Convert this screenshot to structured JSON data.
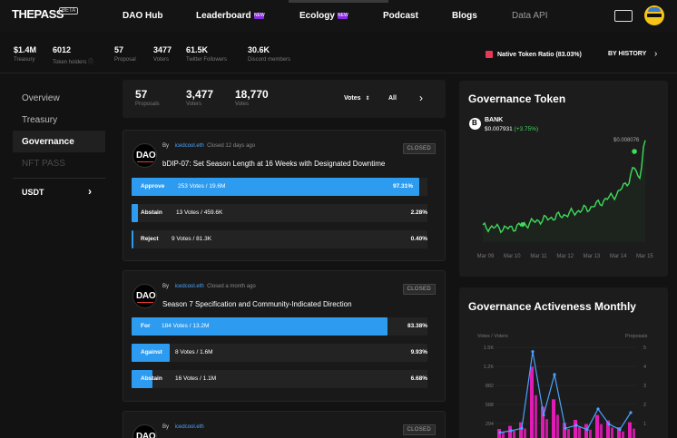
{
  "nav": {
    "logo": "THEPASS",
    "beta": "BETA",
    "links": [
      "DAO Hub",
      "Leaderboard",
      "Ecology",
      "Podcast",
      "Blogs",
      "Data API"
    ],
    "new_tag": "NEW"
  },
  "stats": [
    {
      "value": "$1.4M",
      "label": "Treasury"
    },
    {
      "value": "6012",
      "label": "Token holders ⓘ"
    },
    {
      "value": "57",
      "label": "Proposal"
    },
    {
      "value": "3477",
      "label": "Voters"
    },
    {
      "value": "61.5K",
      "label": "Twitter Followers"
    },
    {
      "value": "30.6K",
      "label": "Discord members"
    }
  ],
  "native_ratio": "Native Token Ratio (83.03%)",
  "by_history": "BY HISTORY",
  "sidebar": {
    "items": [
      "Overview",
      "Treasury",
      "Governance",
      "NFT PASS"
    ],
    "active": "Governance",
    "token": "USDT"
  },
  "summary": {
    "proposals": {
      "value": "57",
      "label": "Proposals"
    },
    "voters": {
      "value": "3,477",
      "label": "Voters"
    },
    "votes": {
      "value": "18,770",
      "label": "Votes"
    },
    "sort": "Votes",
    "filter": "All"
  },
  "proposals": [
    {
      "by": "By",
      "author": "icedcool.eth",
      "time": "Closed 12 days ago",
      "title": "bDIP-07: Set Season Length at 16 Weeks with Designated Downtime",
      "status": "CLOSED",
      "options": [
        {
          "name": "Approve",
          "count": "253 Votes / 19.6M",
          "pct": "97.31%",
          "fill": 0.9731
        },
        {
          "name": "Abstain",
          "count": "13 Votes / 459.6K",
          "pct": "2.28%",
          "fill": 0.0228
        },
        {
          "name": "Reject",
          "count": "9 Votes / 81.3K",
          "pct": "0.40%",
          "fill": 0.004
        }
      ]
    },
    {
      "by": "By",
      "author": "icedcool.eth",
      "time": "Closed a month ago",
      "title": "Season 7 Specification and Community-Indicated Direction",
      "status": "CLOSED",
      "options": [
        {
          "name": "For",
          "count": "184 Votes / 13.2M",
          "pct": "83.38%",
          "fill": 0.8338
        },
        {
          "name": "Against",
          "count": "8 Votes / 1.6M",
          "pct": "9.93%",
          "fill": 0.0993
        },
        {
          "name": "Abstain",
          "count": "16 Votes / 1.1M",
          "pct": "6.68%",
          "fill": 0.0668
        }
      ]
    },
    {
      "by": "By",
      "author": "icedcool.eth",
      "time": "",
      "title": "",
      "status": "CLOSED",
      "options": []
    }
  ],
  "governance_token": {
    "title": "Governance Token",
    "symbol": "BANK",
    "price": "$0.007931",
    "change": "(+3.75%)",
    "peak_label": "$0.008076"
  },
  "activeness": {
    "title": "Governance Activeness Monthly",
    "left_axis_label": "Votes / Voters",
    "right_axis_label": "Proposals"
  },
  "chart_data": [
    {
      "type": "line",
      "x": [
        "Mar 09",
        "Mar 10",
        "Mar 11",
        "Mar 12",
        "Mar 13",
        "Mar 14",
        "Mar 15"
      ],
      "series": [
        {
          "values": [
            0.00718,
            0.00716,
            0.00725,
            0.00732,
            0.00741,
            0.00758,
            0.00798
          ]
        }
      ],
      "peak": 0.008076,
      "color": "#3ddc5a"
    },
    {
      "type": "bar",
      "y_ticks_left": [
        "1.5K",
        "1.2K",
        "882",
        "588",
        "294"
      ],
      "y_ticks_right": [
        "5",
        "4",
        "3",
        "2",
        "1"
      ],
      "series": [
        {
          "values": [
            150,
            200,
            260,
            1180,
            520,
            640,
            250,
            300,
            230,
            380,
            290,
            180,
            260
          ],
          "color": "#e21bb6"
        },
        {
          "values": [
            90,
            120,
            160,
            1430,
            380,
            1050,
            160,
            210,
            140,
            480,
            230,
            140,
            420
          ],
          "color": "#4aa3ff"
        }
      ]
    }
  ]
}
